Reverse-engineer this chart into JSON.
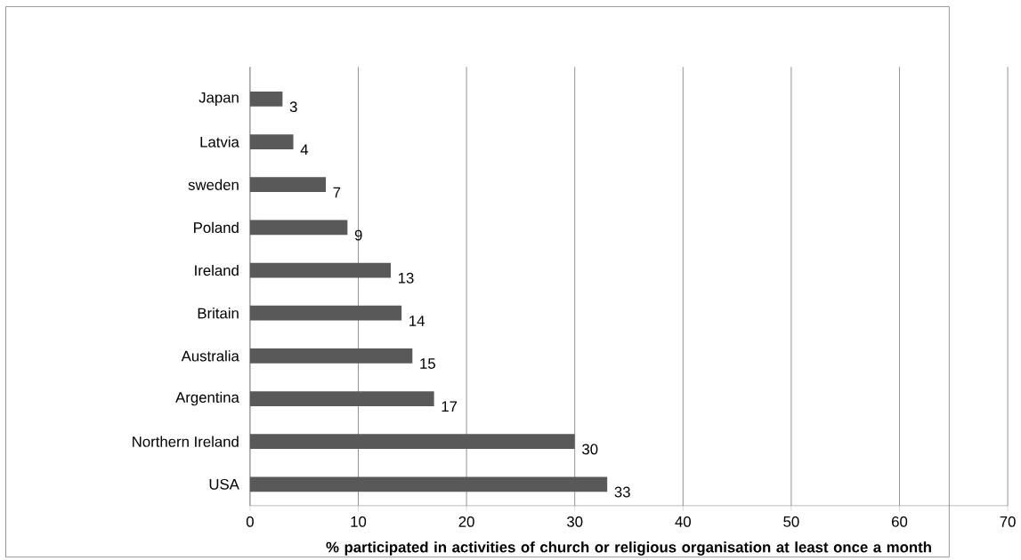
{
  "chart_data": {
    "type": "bar",
    "orientation": "horizontal",
    "xlabel": "% participated in activities of church or religious organisation at least once a month",
    "categories": [
      "Japan",
      "Latvia",
      "sweden",
      "Poland",
      "Ireland",
      "Britain",
      "Australia",
      "Argentina",
      "Northern Ireland",
      "USA"
    ],
    "values": [
      3,
      4,
      7,
      9,
      13,
      14,
      15,
      17,
      30,
      33
    ],
    "color": "#595959",
    "xlim": [
      0,
      70
    ],
    "xticks": [
      0,
      10,
      20,
      30,
      40,
      50,
      60,
      70
    ],
    "grid": "x",
    "data_labels": true
  }
}
